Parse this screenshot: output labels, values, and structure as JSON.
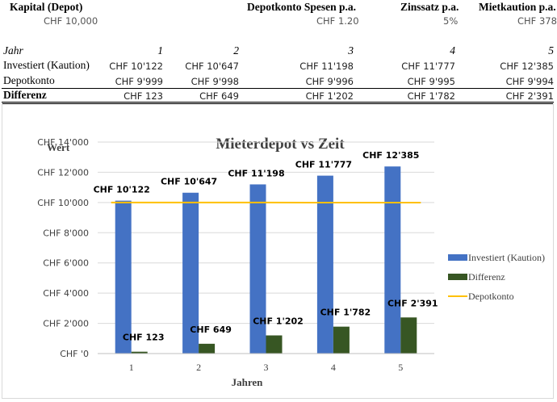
{
  "params": {
    "kapital_label": "Kapital (Depot)",
    "kapital_value": "CHF 10,000",
    "spesen_label": "Depotkonto Spesen p.a.",
    "spesen_value": "CHF 1.20",
    "zins_label": "Zinssatz p.a.",
    "zins_value": "5%",
    "miet_label": "Mietkaution p.a.",
    "miet_value": "CHF 378"
  },
  "table": {
    "year_label": "Jahr",
    "years": [
      "1",
      "2",
      "3",
      "4",
      "5"
    ],
    "rows": [
      {
        "label": "Investiert (Kaution)",
        "values": [
          "CHF 10'122",
          "CHF 10'647",
          "CHF 11'198",
          "CHF 11'777",
          "CHF 12'385"
        ]
      },
      {
        "label": "Depotkonto",
        "values": [
          "CHF 9'999",
          "CHF 9'998",
          "CHF 9'996",
          "CHF 9'995",
          "CHF 9'994"
        ]
      },
      {
        "label": "Differenz",
        "values": [
          "CHF 123",
          "CHF 649",
          "CHF 1'202",
          "CHF 1'782",
          "CHF 2'391"
        ]
      }
    ]
  },
  "chart_data": {
    "type": "bar",
    "title": "Mieterdepot vs Zeit",
    "xlabel": "Jahren",
    "ylabel": "Wert",
    "categories": [
      "1",
      "2",
      "3",
      "4",
      "5"
    ],
    "ylim": [
      0,
      14000
    ],
    "yticks": [
      "CHF '0",
      "CHF 2'000",
      "CHF 4'000",
      "CHF 6'000",
      "CHF 8'000",
      "CHF 10'000",
      "CHF 12'000",
      "CHF 14'000"
    ],
    "grid": true,
    "legend_position": "right",
    "series": [
      {
        "name": "Investiert (Kaution)",
        "kind": "bar",
        "color": "#4472C4",
        "values": [
          10122,
          10647,
          11198,
          11777,
          12385
        ],
        "labels": [
          "CHF 10'122",
          "CHF 10'647",
          "CHF 11'198",
          "CHF 11'777",
          "CHF 12'385"
        ]
      },
      {
        "name": "Differenz",
        "kind": "bar",
        "color": "#375623",
        "values": [
          123,
          649,
          1202,
          1782,
          2391
        ],
        "labels": [
          "CHF 123",
          "CHF 649",
          "CHF 1'202",
          "CHF 1'782",
          "CHF 2'391"
        ]
      },
      {
        "name": "Depotkonto",
        "kind": "line",
        "color": "#FFC000",
        "values": [
          9999,
          9998,
          9996,
          9995,
          9994
        ]
      }
    ]
  }
}
